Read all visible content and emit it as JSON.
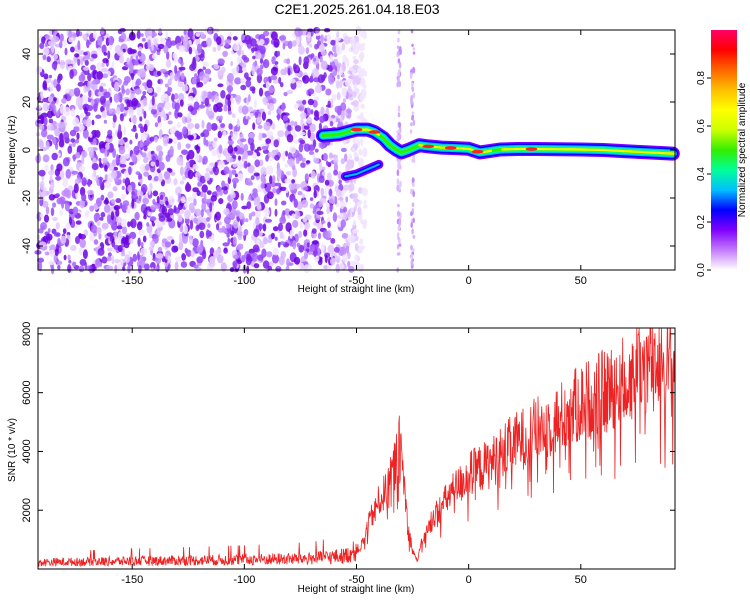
{
  "title": "C2E1.2025.261.04.18.E03",
  "chart_data": [
    {
      "type": "heatmap",
      "name": "spectrogram",
      "xlabel": "Height of straight line (km)",
      "ylabel": "Frequency (Hz)",
      "xlim": [
        -192,
        92
      ],
      "ylim": [
        -50,
        50
      ],
      "x_ticks": [
        "-150",
        "-100",
        "-50",
        "0",
        "50"
      ],
      "y_ticks": [
        "40",
        "20",
        "0",
        "-20",
        "-40"
      ],
      "noise_region_x": [
        -192,
        -52
      ],
      "ridge": {
        "x": [
          -65,
          -58,
          -54,
          -50,
          -45,
          -42,
          -38,
          -35,
          -32,
          -30,
          -27,
          -22,
          -18,
          -12,
          -6,
          0,
          5,
          9,
          14,
          22,
          30,
          40,
          50,
          60,
          70,
          80,
          91
        ],
        "y": [
          6,
          6.5,
          7.5,
          8.5,
          8.5,
          7.5,
          5,
          2,
          0,
          -1,
          0,
          2,
          1.5,
          1,
          0.8,
          0.5,
          -1,
          -0.5,
          0.2,
          0.4,
          0.4,
          0.3,
          0.2,
          0,
          -0.5,
          -1,
          -1.5
        ],
        "peak_amplitude_x": [
          -50,
          -42,
          -18,
          -8,
          4,
          28
        ]
      },
      "secondary_branch": {
        "x": [
          -55,
          -50,
          -45,
          -40
        ],
        "y": [
          -11,
          -10,
          -8,
          -6
        ]
      }
    },
    {
      "type": "colorbar",
      "label": "Normalized spectral amplitude",
      "range": [
        0.0,
        1.0
      ],
      "ticks": [
        "0.0",
        "0.2",
        "0.4",
        "0.6",
        "0.8"
      ],
      "colors": [
        "#ffffff",
        "#c47bff",
        "#7f00ff",
        "#0000ff",
        "#00bfff",
        "#00ff99",
        "#33ee00",
        "#ccff00",
        "#ffff00",
        "#ffbf00",
        "#ff6600",
        "#ff0000",
        "#ff0066"
      ]
    },
    {
      "type": "line",
      "name": "snr",
      "xlabel": "Height of straight line (km)",
      "ylabel": "SNR (10 * v/v)",
      "xlim": [
        -192,
        92
      ],
      "ylim": [
        0,
        8200
      ],
      "x_ticks": [
        "-150",
        "-100",
        "-50",
        "0",
        "50"
      ],
      "y_ticks": [
        "8000",
        "6000",
        "4000",
        "2000"
      ],
      "series_color": "#ee2222",
      "envelope": {
        "x": [
          -192,
          -150,
          -100,
          -70,
          -55,
          -48,
          -44,
          -40,
          -36,
          -33,
          -31,
          -29,
          -27,
          -25,
          -23,
          -21,
          -19,
          -16,
          -12,
          -8,
          -4,
          0,
          5,
          10,
          15,
          20,
          30,
          40,
          50,
          60,
          70,
          75,
          80,
          85,
          90,
          92
        ],
        "y": [
          250,
          300,
          350,
          400,
          500,
          800,
          1800,
          2500,
          3000,
          3800,
          4600,
          3400,
          1500,
          700,
          300,
          900,
          1300,
          1900,
          2300,
          2800,
          3100,
          3500,
          3700,
          3900,
          4300,
          4600,
          5100,
          5500,
          6100,
          6500,
          7000,
          7300,
          7600,
          7800,
          7500,
          7400
        ]
      }
    }
  ]
}
